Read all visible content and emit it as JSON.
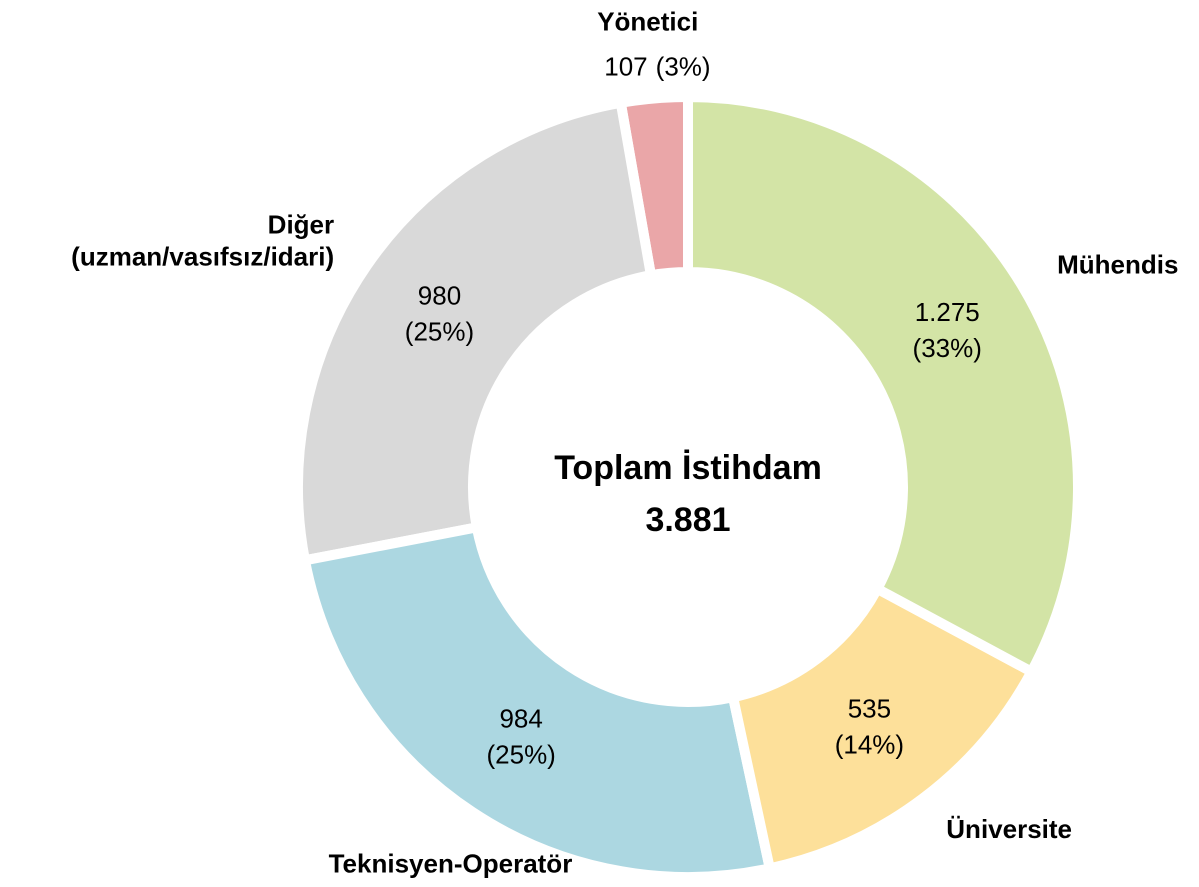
{
  "chart_data": {
    "type": "donut",
    "categories": [
      "Mühendis",
      "Üniversite",
      "Teknisyen-Operatör",
      "Diğer\n(uzman/vasıfsız/idari)",
      "Yönetici"
    ],
    "values": [
      1275,
      535,
      984,
      980,
      107
    ],
    "value_labels": [
      "1.275",
      "535",
      "984",
      "980",
      "107"
    ],
    "percents": [
      33,
      14,
      25,
      25,
      3
    ],
    "percent_labels": [
      "(33%)",
      "(14%)",
      "(25%)",
      "(25%)",
      "(3%)"
    ],
    "colors": [
      "#d3e4a6",
      "#fde09a",
      "#acd7e1",
      "#d9d9d9",
      "#eaa6a8"
    ],
    "center_label": "Toplam İstihdam",
    "total": 3881,
    "total_label": "3.881"
  }
}
